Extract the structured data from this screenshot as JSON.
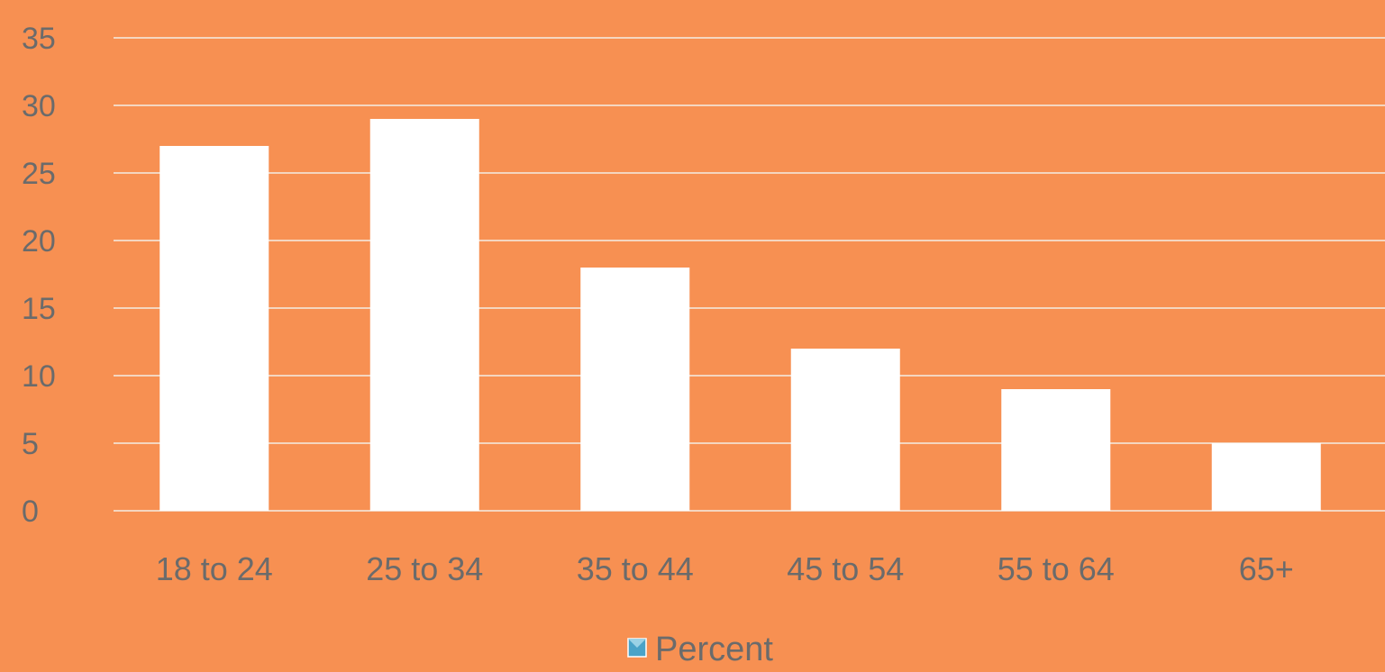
{
  "page_bg": "#f79052",
  "chart_data": {
    "type": "bar",
    "categories": [
      "18 to 24",
      "25 to 34",
      "35 to 44",
      "45 to 54",
      "55 to 64",
      "65+"
    ],
    "series": [
      {
        "name": "Percent",
        "values": [
          27,
          29,
          18,
          12,
          9,
          5
        ],
        "color": "#ffffff"
      }
    ],
    "yticks": [
      "0",
      "5",
      "10",
      "15",
      "20",
      "25",
      "30",
      "35"
    ],
    "ylim": [
      0,
      35
    ],
    "title": "",
    "xlabel": "",
    "ylabel": "",
    "grid": true,
    "legend": {
      "placement": "bottom-center",
      "label": "Percent"
    },
    "colors": {
      "bar": "#ffffff",
      "background": "#f79052",
      "grid": "#f3ede5",
      "text": "#6b6b6b"
    }
  }
}
